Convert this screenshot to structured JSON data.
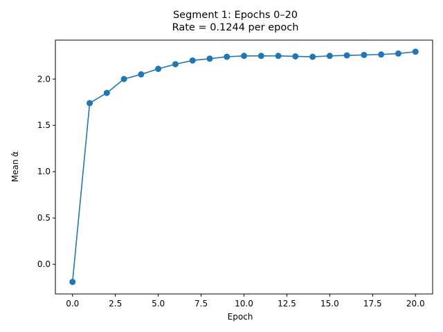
{
  "chart_data": {
    "type": "line",
    "title_line1": "Segment 1: Epochs 0–20",
    "title_line2": "Rate = 0.1244 per epoch",
    "xlabel": "Epoch",
    "ylabel": "Mean α̂",
    "xlim": [
      -1.0,
      21.0
    ],
    "ylim": [
      -0.32,
      2.42
    ],
    "xticks": [
      0.0,
      2.5,
      5.0,
      7.5,
      10.0,
      12.5,
      15.0,
      17.5,
      20.0
    ],
    "xtick_labels": [
      "0.0",
      "2.5",
      "5.0",
      "7.5",
      "10.0",
      "12.5",
      "15.0",
      "17.5",
      "20.0"
    ],
    "yticks": [
      0.0,
      0.5,
      1.0,
      1.5,
      2.0
    ],
    "ytick_labels": [
      "0.0",
      "0.5",
      "1.0",
      "1.5",
      "2.0"
    ],
    "grid": false,
    "series": [
      {
        "color": "#1f77b4",
        "marker": "circle",
        "x": [
          0,
          1,
          2,
          3,
          4,
          5,
          6,
          7,
          8,
          9,
          10,
          11,
          12,
          13,
          14,
          15,
          16,
          17,
          18,
          19,
          20
        ],
        "y": [
          -0.19,
          1.74,
          1.85,
          2.0,
          2.05,
          2.11,
          2.16,
          2.2,
          2.22,
          2.24,
          2.25,
          2.25,
          2.25,
          2.245,
          2.24,
          2.25,
          2.255,
          2.26,
          2.265,
          2.275,
          2.295
        ]
      }
    ]
  }
}
